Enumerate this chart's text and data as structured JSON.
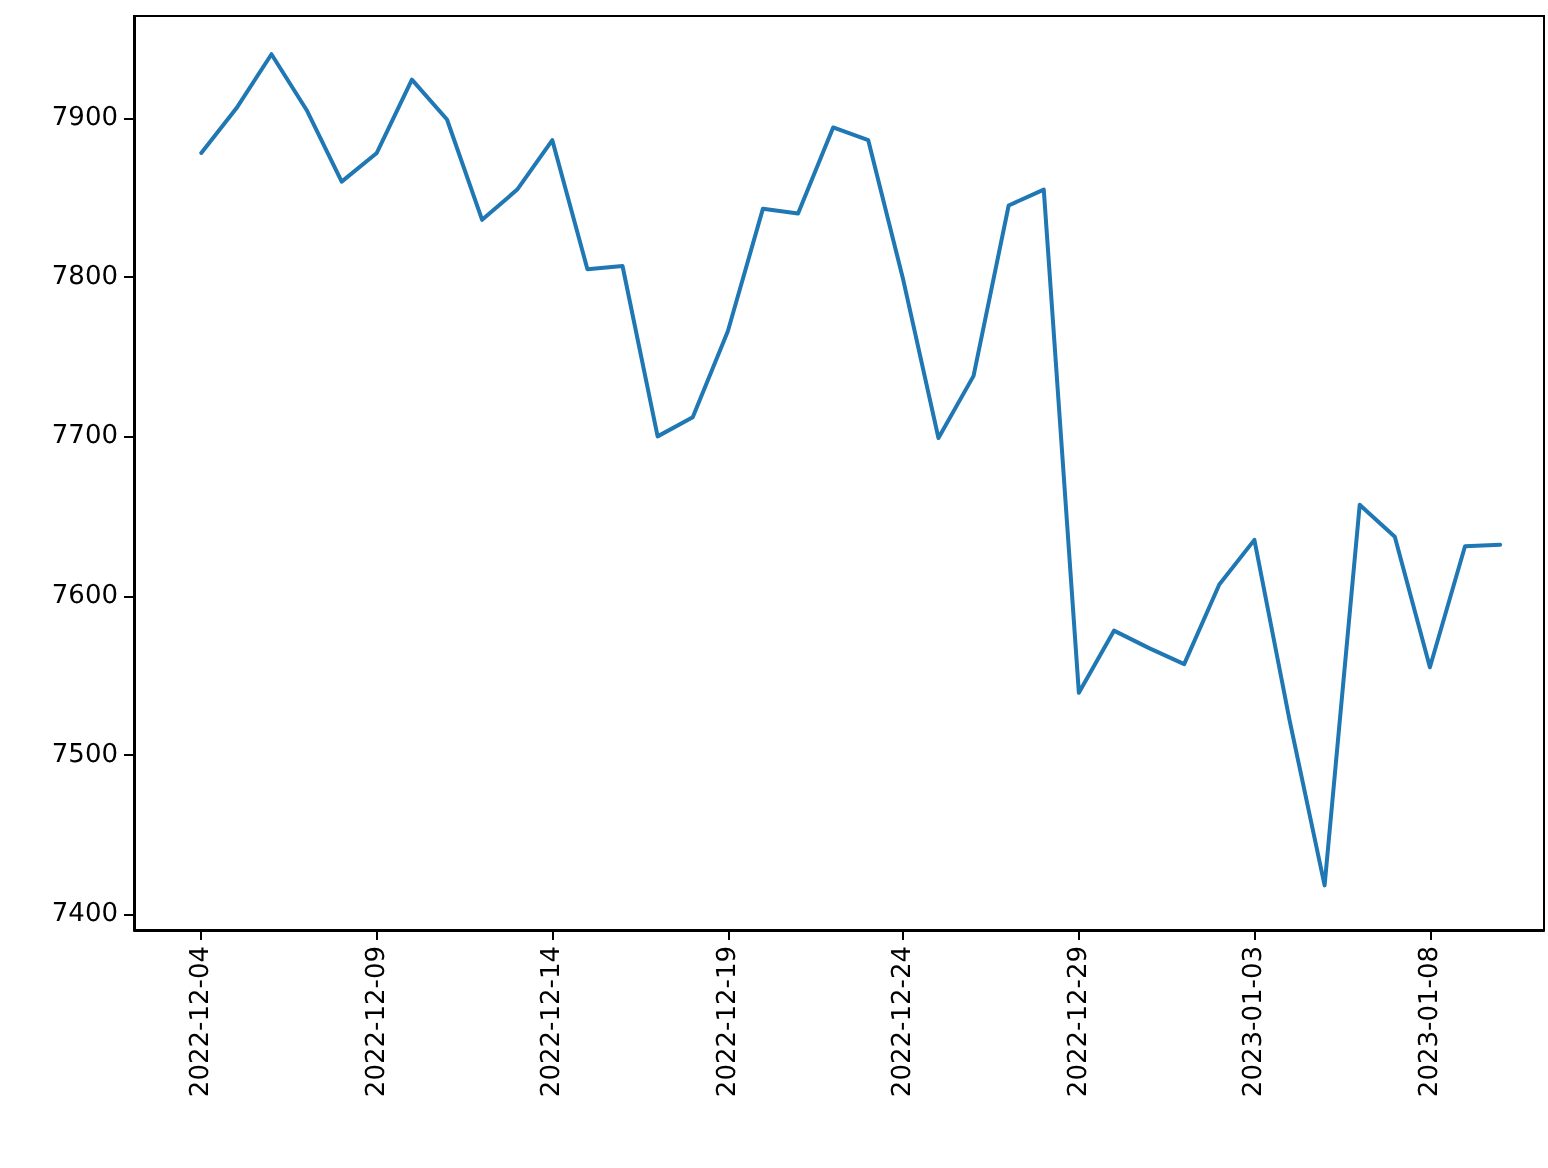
{
  "chart_data": {
    "type": "line",
    "x": [
      "2022-12-04",
      "2022-12-05",
      "2022-12-06",
      "2022-12-07",
      "2022-12-08",
      "2022-12-09",
      "2022-12-10",
      "2022-12-11",
      "2022-12-12",
      "2022-12-13",
      "2022-12-14",
      "2022-12-15",
      "2022-12-16",
      "2022-12-17",
      "2022-12-18",
      "2022-12-19",
      "2022-12-20",
      "2022-12-21",
      "2022-12-22",
      "2022-12-23",
      "2022-12-24",
      "2022-12-25",
      "2022-12-26",
      "2022-12-27",
      "2022-12-28",
      "2022-12-29",
      "2022-12-30",
      "2022-12-31",
      "2023-01-01",
      "2023-01-02",
      "2023-01-03",
      "2023-01-04",
      "2023-01-05",
      "2023-01-06",
      "2023-01-07",
      "2023-01-08",
      "2023-01-09",
      "2023-01-10"
    ],
    "series": [
      {
        "color": "#1f77b4",
        "values": [
          7878,
          7906,
          7940,
          7905,
          7860,
          7878,
          7924,
          7899,
          7836,
          7855,
          7886,
          7805,
          7807,
          7700,
          7712,
          7766,
          7843,
          7840,
          7894,
          7886,
          7798,
          7699,
          7738,
          7845,
          7855,
          7539,
          7578,
          7567,
          7557,
          7607,
          7635,
          7522,
          7418,
          7657,
          7637,
          7555,
          7631,
          7632
        ]
      }
    ],
    "xlim": [
      "2022-12-02T02:00",
      "2023-01-11T06:00"
    ],
    "xticks": [
      "2022-12-04",
      "2022-12-09",
      "2022-12-14",
      "2022-12-19",
      "2022-12-24",
      "2022-12-29",
      "2023-01-03",
      "2023-01-08"
    ],
    "ylim": [
      7390,
      7964
    ],
    "yticks": [
      7400,
      7500,
      7600,
      7700,
      7800,
      7900
    ],
    "grid": false,
    "marker": "none",
    "line_style": "solid"
  }
}
